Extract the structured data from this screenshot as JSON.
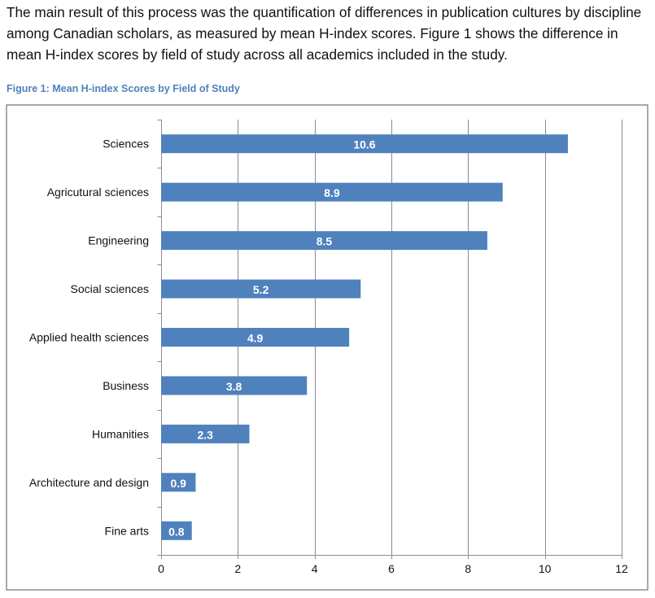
{
  "text": {
    "paragraph": "The main result of this process was the quantification of differences in publication cultures by discipline among Canadian scholars, as measured by mean H-index scores. Figure 1 shows the difference in mean H-index scores by field of study across all academics included in the study.",
    "figure_title": "Figure 1: Mean H-index Scores by Field of Study"
  },
  "chart_data": {
    "type": "bar",
    "orientation": "horizontal",
    "title": "Figure 1: Mean H-index Scores by Field of Study",
    "xlabel": "",
    "ylabel": "",
    "categories": [
      "Sciences",
      "Agricutural sciences",
      "Engineering",
      "Social sciences",
      "Applied health sciences",
      "Business",
      "Humanities",
      "Architecture and design",
      "Fine arts"
    ],
    "values": [
      10.6,
      8.9,
      8.5,
      5.2,
      4.9,
      3.8,
      2.3,
      0.9,
      0.8
    ],
    "data_labels": [
      "10.6",
      "8.9",
      "8.5",
      "5.2",
      "4.9",
      "3.8",
      "2.3",
      "0.9",
      "0.8"
    ],
    "xlim": [
      0,
      12
    ],
    "x_ticks": [
      0,
      2,
      4,
      6,
      8,
      10,
      12
    ],
    "grid": "vertical gridlines",
    "legend": "none",
    "bar_color": "#4f81bd",
    "border_color": "#555555",
    "grid_color": "#8c8c8c"
  }
}
